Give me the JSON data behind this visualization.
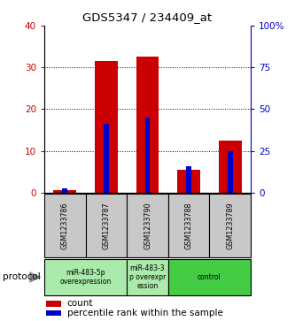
{
  "title": "GDS5347 / 234409_at",
  "samples": [
    "GSM1233786",
    "GSM1233787",
    "GSM1233790",
    "GSM1233788",
    "GSM1233789"
  ],
  "red_values": [
    0.5,
    31.5,
    32.5,
    5.5,
    12.5
  ],
  "blue_values_pct": [
    2.5,
    41.0,
    45.0,
    16.0,
    25.0
  ],
  "left_ylim": [
    0,
    40
  ],
  "right_ylim": [
    0,
    100
  ],
  "left_yticks": [
    0,
    10,
    20,
    30,
    40
  ],
  "right_yticks": [
    0,
    25,
    50,
    75,
    100
  ],
  "right_yticklabels": [
    "0",
    "25",
    "50",
    "75",
    "100%"
  ],
  "red_bar_width": 0.55,
  "blue_bar_width": 0.12,
  "red_color": "#CC0000",
  "blue_color": "#0000CC",
  "bg_color": "#FFFFFF",
  "grid_color": "#555555",
  "sample_bg_color": "#C8C8C8",
  "proto_light_color": "#AAEAAA",
  "proto_dark_color": "#44CC44",
  "legend_items": [
    "count",
    "percentile rank within the sample"
  ],
  "protocol_groups": [
    {
      "label": "miR-483-5p\noverexpression",
      "indices": [
        0,
        1
      ],
      "color": "#AAEAAA"
    },
    {
      "label": "miR-483-3\np overexpr\nession",
      "indices": [
        2
      ],
      "color": "#AAEAAA"
    },
    {
      "label": "control",
      "indices": [
        3,
        4
      ],
      "color": "#44CC44"
    }
  ]
}
